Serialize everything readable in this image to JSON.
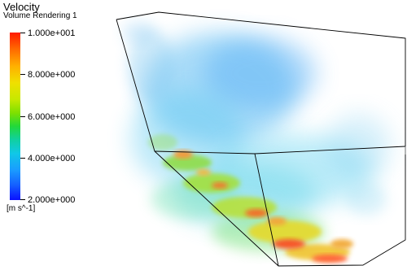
{
  "legend": {
    "title": "Velocity",
    "subtitle": "Volume Rendering 1",
    "units": "[m s^-1]",
    "ticks": [
      "1.000e+001",
      "8.000e+000",
      "6.000e+000",
      "4.000e+000",
      "2.000e+000"
    ],
    "range": [
      2.0,
      10.0
    ],
    "colormap": [
      "#0a10ff",
      "#1a9cff",
      "#10c8e6",
      "#22d83a",
      "#f0e000",
      "#ffb000",
      "#ff1a00"
    ]
  },
  "scene": {
    "background": "#ffffff",
    "edge_color": "#000000",
    "fluid_color": "#3cb8f0"
  }
}
